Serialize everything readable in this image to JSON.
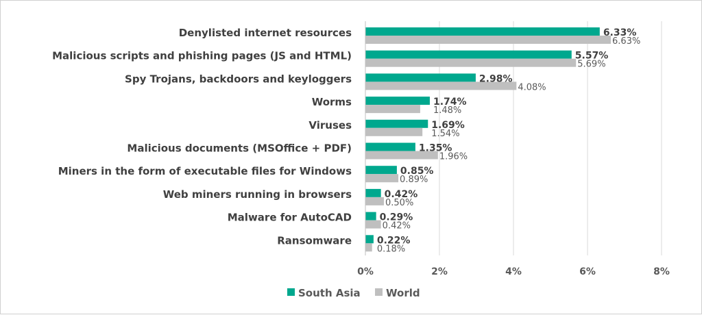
{
  "chart_data": {
    "type": "bar",
    "orientation": "horizontal",
    "categories": [
      "Denylisted internet resources",
      "Malicious scripts and phishing pages (JS and HTML)",
      "Spy Trojans, backdoors and keyloggers",
      "Worms",
      "Viruses",
      "Malicious documents (MSOffice + PDF)",
      "Miners in the form of executable files for Windows",
      "Web miners running in browsers",
      "Malware for AutoCAD",
      "Ransomware"
    ],
    "series": [
      {
        "name": "South Asia",
        "color": "#00a88e",
        "values": [
          6.33,
          5.57,
          2.98,
          1.74,
          1.69,
          1.35,
          0.85,
          0.42,
          0.29,
          0.22
        ],
        "labels": [
          "6.33%",
          "5.57%",
          "2.98%",
          "1.74%",
          "1.69%",
          "1.35%",
          "0.85%",
          "0.42%",
          "0.29%",
          "0.22%"
        ]
      },
      {
        "name": "World",
        "color": "#bfbfbf",
        "values": [
          6.63,
          5.69,
          4.08,
          1.48,
          1.54,
          1.96,
          0.89,
          0.5,
          0.42,
          0.18
        ],
        "labels": [
          "6.63%",
          "5.69%",
          "4.08%",
          "1.48%",
          "1.54%",
          "1.96%",
          "0.89%",
          "0.50%",
          "0.42%",
          "0.18%"
        ]
      }
    ],
    "xlim": [
      0,
      8
    ],
    "xticks": [
      "0%",
      "2%",
      "4%",
      "6%",
      "8%"
    ],
    "grid": true,
    "legend": "bottom-left"
  }
}
